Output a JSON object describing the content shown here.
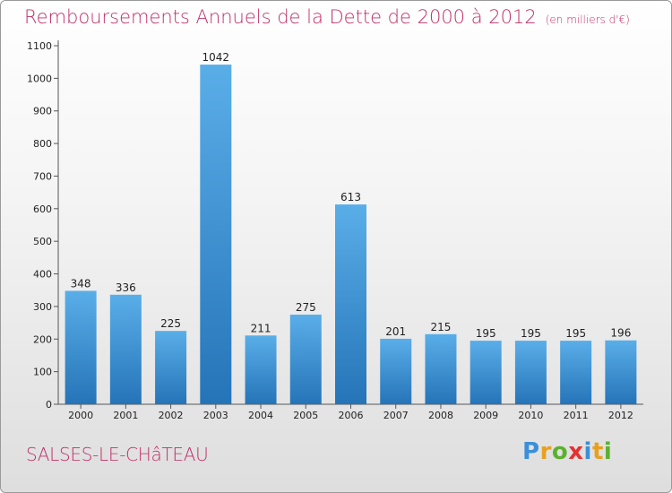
{
  "chart_data": {
    "type": "bar",
    "title": "Remboursements Annuels de la Dette de 2000 à 2012",
    "subtitle": "(en milliers d'€)",
    "categories": [
      "2000",
      "2001",
      "2002",
      "2003",
      "2004",
      "2005",
      "2006",
      "2007",
      "2008",
      "2009",
      "2010",
      "2011",
      "2012"
    ],
    "values": [
      348,
      336,
      225,
      1042,
      211,
      275,
      613,
      201,
      215,
      195,
      195,
      195,
      196
    ],
    "ylim": [
      0,
      1100
    ],
    "yticks": [
      0,
      100,
      200,
      300,
      400,
      500,
      600,
      700,
      800,
      900,
      1000,
      1100
    ],
    "grid": false,
    "colors": {
      "bar_top": "#5aaee8",
      "bar_bottom": "#2574b8",
      "title": "#c0306a"
    }
  },
  "footer": {
    "city": "SALSES-LE-CHâTEAU",
    "logo_letters": [
      "P",
      "r",
      "o",
      "x",
      "i",
      "t",
      "i"
    ],
    "logo_colors": [
      "#3a8fd8",
      "#e8a020",
      "#5cb030",
      "#e83030",
      "#3a8fd8",
      "#e8a020",
      "#5cb030"
    ]
  }
}
